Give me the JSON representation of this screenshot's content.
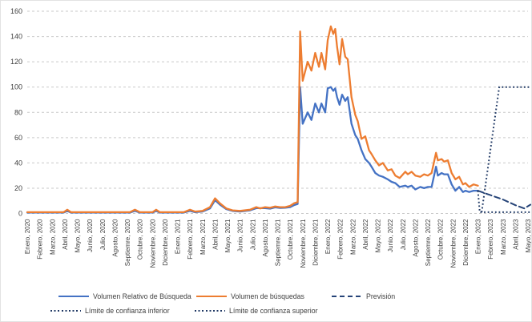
{
  "chart_data": {
    "type": "line",
    "title": "",
    "xlabel": "",
    "ylabel": "",
    "grid": true,
    "legend_position": "bottom",
    "y_axis": {
      "min": 0,
      "max": 160,
      "step": 20,
      "ticks": [
        0,
        20,
        40,
        60,
        80,
        100,
        120,
        140,
        160
      ]
    },
    "x_categories": [
      "Enero, 2020",
      "Febrero, 2020",
      "Marzo, 2020",
      "Abril, 2020",
      "Mayo, 2020",
      "Junio, 2020",
      "Julio, 2020",
      "Agosto, 2020",
      "Septiemre, 2020",
      "Octubre, 2020",
      "Noviembre, 2020",
      "Diciembre, 2020",
      "Enero, 2021",
      "Febrero, 2021",
      "Marzo, 2021",
      "Abril, 2021",
      "Mayo, 2021",
      "Junio, 2021",
      "Julio, 2021",
      "Agosto, 2021",
      "Septiemre, 2021",
      "Octubre, 2021",
      "Noviembre, 2021",
      "Diciembre, 2021",
      "Enero, 2022",
      "Febrero, 2022",
      "Marzo, 2022",
      "Abril, 2022",
      "Mayo, 2022",
      "Junio, 2022",
      "Julio, 2022",
      "Agosto, 2022",
      "Septiemre, 2022",
      "Octubre, 2022",
      "Noviembre, 2022",
      "Diciembre, 2022",
      "Enero, 2023",
      "Febrero, 2023",
      "Marzo, 2023",
      "Abril, 2023",
      "Mayo, 2023"
    ],
    "series": [
      {
        "key": "volumen-relativo-de-busqueda",
        "name": "Volumen Relativo de Búsqueda",
        "color": "#4472C4",
        "style": "solid",
        "points": [
          [
            0,
            0.7
          ],
          [
            1,
            0.7
          ],
          [
            2,
            0.7
          ],
          [
            2.9,
            0.7
          ],
          [
            3.2,
            2
          ],
          [
            3.5,
            0.7
          ],
          [
            4,
            0.7
          ],
          [
            5,
            0.7
          ],
          [
            6,
            0.7
          ],
          [
            7,
            0.7
          ],
          [
            8.2,
            0.7
          ],
          [
            8.6,
            2
          ],
          [
            9,
            0.7
          ],
          [
            10,
            0.7
          ],
          [
            10.3,
            2
          ],
          [
            10.6,
            0.7
          ],
          [
            11.5,
            0.7
          ],
          [
            12.5,
            0.7
          ],
          [
            13,
            2
          ],
          [
            13.4,
            1
          ],
          [
            14,
            1.5
          ],
          [
            14.6,
            4
          ],
          [
            15,
            10.5
          ],
          [
            15.4,
            7
          ],
          [
            15.9,
            3.5
          ],
          [
            16.4,
            2
          ],
          [
            17,
            1.5
          ],
          [
            17.8,
            2.5
          ],
          [
            18.3,
            4.2
          ],
          [
            19,
            4.2
          ],
          [
            19.4,
            3.8
          ],
          [
            19.8,
            4.8
          ],
          [
            20.2,
            4.4
          ],
          [
            20.6,
            4.5
          ],
          [
            21,
            5
          ],
          [
            21.3,
            6.5
          ],
          [
            21.6,
            7.5
          ],
          [
            21.8,
            100
          ],
          [
            22,
            71
          ],
          [
            22.4,
            80
          ],
          [
            22.7,
            74
          ],
          [
            23,
            87
          ],
          [
            23.3,
            80
          ],
          [
            23.5,
            87
          ],
          [
            23.8,
            80
          ],
          [
            24,
            99
          ],
          [
            24.25,
            100
          ],
          [
            24.45,
            97
          ],
          [
            24.6,
            99
          ],
          [
            24.75,
            92
          ],
          [
            24.95,
            86
          ],
          [
            25.15,
            94
          ],
          [
            25.4,
            89
          ],
          [
            25.6,
            92
          ],
          [
            25.9,
            71
          ],
          [
            26.2,
            62
          ],
          [
            26.4,
            59
          ],
          [
            26.7,
            50
          ],
          [
            27,
            43
          ],
          [
            27.3,
            40
          ],
          [
            27.5,
            37
          ],
          [
            27.8,
            32
          ],
          [
            28.1,
            30
          ],
          [
            28.4,
            29
          ],
          [
            28.8,
            27
          ],
          [
            29.1,
            25
          ],
          [
            29.4,
            24
          ],
          [
            29.75,
            21
          ],
          [
            30.2,
            22
          ],
          [
            30.4,
            21
          ],
          [
            30.7,
            22
          ],
          [
            31,
            19
          ],
          [
            31.4,
            21
          ],
          [
            31.7,
            20
          ],
          [
            32,
            21
          ],
          [
            32.3,
            21
          ],
          [
            32.65,
            37
          ],
          [
            32.8,
            30
          ],
          [
            33.1,
            32
          ],
          [
            33.3,
            31
          ],
          [
            33.6,
            31
          ],
          [
            33.9,
            23
          ],
          [
            34.2,
            18
          ],
          [
            34.5,
            21
          ],
          [
            34.8,
            17
          ],
          [
            35,
            18
          ],
          [
            35.3,
            17
          ],
          [
            35.65,
            18
          ],
          [
            36,
            18
          ]
        ]
      },
      {
        "key": "volumen-de-busquedas",
        "name": "Volumen de búsquedas",
        "color": "#ED7D31",
        "style": "solid",
        "points": [
          [
            0,
            1
          ],
          [
            1,
            1
          ],
          [
            2,
            1
          ],
          [
            2.9,
            1
          ],
          [
            3.2,
            3
          ],
          [
            3.5,
            1
          ],
          [
            4,
            1
          ],
          [
            5,
            1
          ],
          [
            6,
            1
          ],
          [
            7,
            1
          ],
          [
            8.2,
            1
          ],
          [
            8.6,
            3
          ],
          [
            9,
            1
          ],
          [
            10,
            1
          ],
          [
            10.3,
            3
          ],
          [
            10.6,
            1
          ],
          [
            11.5,
            1
          ],
          [
            12.5,
            1
          ],
          [
            13,
            3
          ],
          [
            13.4,
            1.5
          ],
          [
            14,
            2
          ],
          [
            14.6,
            5
          ],
          [
            15,
            12
          ],
          [
            15.4,
            8
          ],
          [
            15.9,
            4
          ],
          [
            16.4,
            2.5
          ],
          [
            17,
            2
          ],
          [
            17.8,
            3
          ],
          [
            18.3,
            5
          ],
          [
            18.6,
            4
          ],
          [
            19,
            5
          ],
          [
            19.4,
            4.5
          ],
          [
            19.8,
            5.5
          ],
          [
            20.2,
            5
          ],
          [
            20.6,
            5
          ],
          [
            21,
            6
          ],
          [
            21.3,
            8
          ],
          [
            21.6,
            9
          ],
          [
            21.8,
            144
          ],
          [
            22,
            105
          ],
          [
            22.4,
            120
          ],
          [
            22.7,
            113
          ],
          [
            23,
            127
          ],
          [
            23.3,
            116
          ],
          [
            23.5,
            127
          ],
          [
            23.8,
            114
          ],
          [
            24,
            137
          ],
          [
            24.25,
            148
          ],
          [
            24.45,
            142
          ],
          [
            24.6,
            146
          ],
          [
            24.75,
            132
          ],
          [
            24.95,
            118
          ],
          [
            25.15,
            138
          ],
          [
            25.4,
            124
          ],
          [
            25.6,
            122
          ],
          [
            25.9,
            92
          ],
          [
            26.2,
            78
          ],
          [
            26.4,
            73
          ],
          [
            26.7,
            59
          ],
          [
            27,
            61
          ],
          [
            27.3,
            50
          ],
          [
            27.5,
            47
          ],
          [
            27.8,
            42
          ],
          [
            28.1,
            38
          ],
          [
            28.4,
            40
          ],
          [
            28.8,
            34
          ],
          [
            29.1,
            35
          ],
          [
            29.4,
            30
          ],
          [
            29.75,
            28
          ],
          [
            30.2,
            33
          ],
          [
            30.4,
            31
          ],
          [
            30.7,
            33
          ],
          [
            31,
            30
          ],
          [
            31.4,
            29
          ],
          [
            31.7,
            31
          ],
          [
            32,
            30
          ],
          [
            32.3,
            32
          ],
          [
            32.65,
            48
          ],
          [
            32.8,
            42
          ],
          [
            33.1,
            43
          ],
          [
            33.3,
            41
          ],
          [
            33.6,
            42
          ],
          [
            33.9,
            32
          ],
          [
            34.2,
            27
          ],
          [
            34.5,
            29
          ],
          [
            34.8,
            23
          ],
          [
            35,
            24
          ],
          [
            35.3,
            21
          ],
          [
            35.65,
            23
          ],
          [
            36,
            22
          ]
        ]
      },
      {
        "key": "prevision",
        "name": "Previsión",
        "color": "#264478",
        "style": "dashed",
        "points": [
          [
            36,
            18
          ],
          [
            37,
            14.5
          ],
          [
            38,
            11
          ],
          [
            39,
            6.5
          ],
          [
            39.7,
            4
          ],
          [
            40.2,
            7
          ]
        ]
      },
      {
        "key": "limite-de-confianza-inferior",
        "name": "Límite de confianza inferior",
        "color": "#1F3864",
        "style": "dotted",
        "points": [
          [
            36,
            18
          ],
          [
            36.15,
            1
          ],
          [
            37,
            1
          ],
          [
            38,
            1
          ],
          [
            39,
            1
          ],
          [
            40.2,
            1
          ]
        ]
      },
      {
        "key": "limite-de-confianza-superior",
        "name": "Límite de confianza superior",
        "color": "#1F3864",
        "style": "dotted",
        "points": [
          [
            36.3,
            1
          ],
          [
            37.7,
            100
          ],
          [
            40.2,
            100
          ]
        ]
      }
    ]
  },
  "colors": {
    "gridline": "#c9c9c9",
    "axis_text": "#404040",
    "background": "#ffffff"
  }
}
